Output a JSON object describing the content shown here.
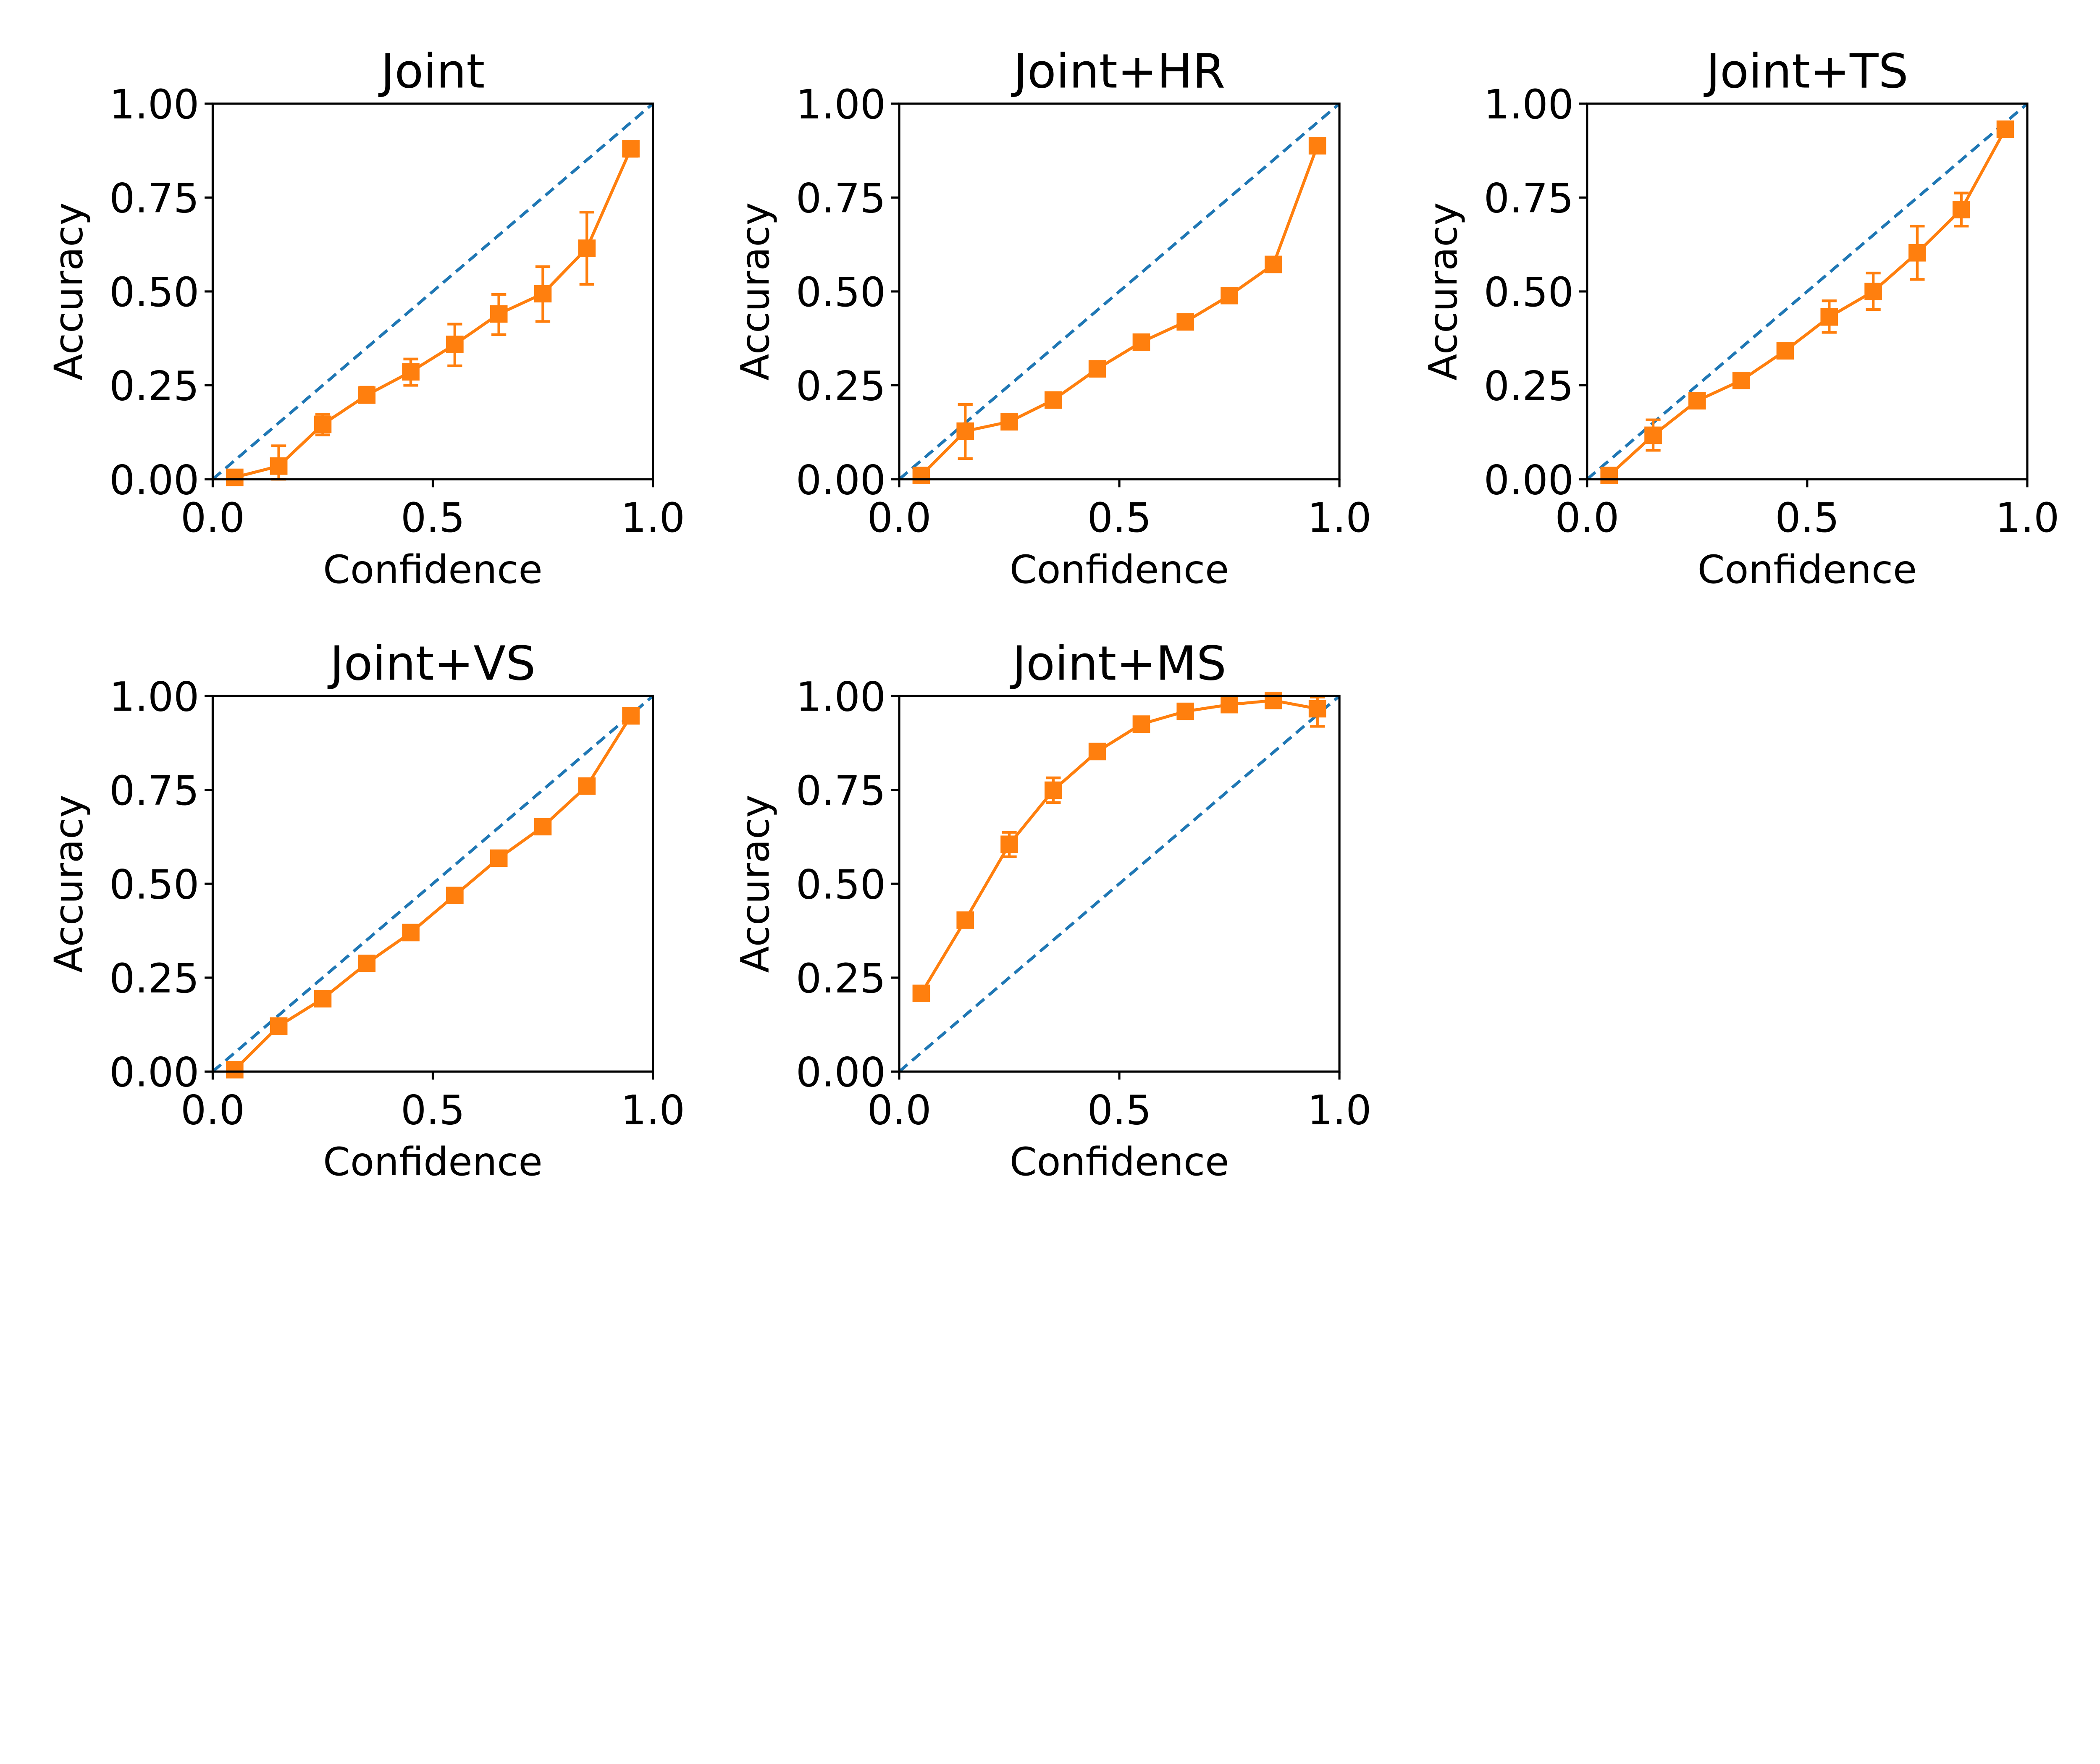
{
  "chart_data": [
    {
      "type": "line",
      "title": "Joint",
      "xlabel": "Confidence",
      "ylabel": "Accuracy",
      "xlim": [
        0,
        1
      ],
      "ylim": [
        0,
        1
      ],
      "xticks": [
        "0.0",
        "0.5",
        "1.0"
      ],
      "yticks": [
        "0.00",
        "0.25",
        "0.50",
        "0.75",
        "1.00"
      ],
      "grid": false,
      "reference_line": {
        "x": [
          0,
          1
        ],
        "y": [
          0,
          1
        ],
        "style": "dashed",
        "color": "#1f77b4"
      },
      "series": [
        {
          "color": "#ff7f0e",
          "marker": "square",
          "x": [
            0.05,
            0.15,
            0.25,
            0.35,
            0.45,
            0.55,
            0.65,
            0.75,
            0.85,
            0.95
          ],
          "y": [
            0.005,
            0.035,
            0.146,
            0.224,
            0.286,
            0.359,
            0.44,
            0.494,
            0.615,
            0.88
          ],
          "error": [
            null,
            [
              0.0,
              0.089
            ],
            [
              0.118,
              0.173
            ],
            [
              0.205,
              0.245
            ],
            [
              0.25,
              0.32
            ],
            [
              0.302,
              0.413
            ],
            [
              0.385,
              0.492
            ],
            [
              0.42,
              0.566
            ],
            [
              0.519,
              0.711
            ],
            [
              0.86,
              0.9
            ]
          ]
        }
      ]
    },
    {
      "type": "line",
      "title": "Joint+HR",
      "xlabel": "Confidence",
      "ylabel": "Accuracy",
      "xlim": [
        0,
        1
      ],
      "ylim": [
        0,
        1
      ],
      "xticks": [
        "0.0",
        "0.5",
        "1.0"
      ],
      "yticks": [
        "0.00",
        "0.25",
        "0.50",
        "0.75",
        "1.00"
      ],
      "grid": false,
      "reference_line": {
        "x": [
          0,
          1
        ],
        "y": [
          0,
          1
        ],
        "style": "dashed",
        "color": "#1f77b4"
      },
      "series": [
        {
          "color": "#ff7f0e",
          "marker": "square",
          "x": [
            0.05,
            0.15,
            0.25,
            0.35,
            0.45,
            0.55,
            0.65,
            0.75,
            0.85,
            0.95
          ],
          "y": [
            0.01,
            0.128,
            0.153,
            0.211,
            0.294,
            0.365,
            0.419,
            0.489,
            0.572,
            0.888
          ],
          "error": [
            null,
            [
              0.055,
              0.199
            ],
            null,
            null,
            null,
            null,
            null,
            [
              0.474,
              0.504
            ],
            null,
            null
          ]
        }
      ]
    },
    {
      "type": "line",
      "title": "Joint+TS",
      "xlabel": "Confidence",
      "ylabel": "Accuracy",
      "xlim": [
        0,
        1
      ],
      "ylim": [
        0,
        1
      ],
      "xticks": [
        "0.0",
        "0.5",
        "1.0"
      ],
      "yticks": [
        "0.00",
        "0.25",
        "0.50",
        "0.75",
        "1.00"
      ],
      "grid": false,
      "reference_line": {
        "x": [
          0,
          1
        ],
        "y": [
          0,
          1
        ],
        "style": "dashed",
        "color": "#1f77b4"
      },
      "series": [
        {
          "color": "#ff7f0e",
          "marker": "square",
          "x": [
            0.05,
            0.15,
            0.25,
            0.35,
            0.45,
            0.55,
            0.65,
            0.75,
            0.85,
            0.95
          ],
          "y": [
            0.01,
            0.117,
            0.209,
            0.263,
            0.342,
            0.432,
            0.5,
            0.603,
            0.718,
            0.932
          ],
          "error": [
            null,
            [
              0.077,
              0.158
            ],
            null,
            [
              0.248,
              0.278
            ],
            null,
            [
              0.391,
              0.475
            ],
            [
              0.452,
              0.549
            ],
            [
              0.532,
              0.674
            ],
            [
              0.674,
              0.762
            ],
            null
          ]
        }
      ]
    },
    {
      "type": "line",
      "title": "Joint+VS",
      "xlabel": "Confidence",
      "ylabel": "Accuracy",
      "xlim": [
        0,
        1
      ],
      "ylim": [
        0,
        1
      ],
      "xticks": [
        "0.0",
        "0.5",
        "1.0"
      ],
      "yticks": [
        "0.00",
        "0.25",
        "0.50",
        "0.75",
        "1.00"
      ],
      "grid": false,
      "reference_line": {
        "x": [
          0,
          1
        ],
        "y": [
          0,
          1
        ],
        "style": "dashed",
        "color": "#1f77b4"
      },
      "series": [
        {
          "color": "#ff7f0e",
          "marker": "square",
          "x": [
            0.05,
            0.15,
            0.25,
            0.35,
            0.45,
            0.55,
            0.65,
            0.75,
            0.85,
            0.95
          ],
          "y": [
            0.005,
            0.121,
            0.194,
            0.288,
            0.37,
            0.469,
            0.568,
            0.652,
            0.76,
            0.947
          ],
          "error": [
            null,
            null,
            null,
            null,
            null,
            null,
            null,
            null,
            null,
            null
          ]
        }
      ]
    },
    {
      "type": "line",
      "title": "Joint+MS",
      "xlabel": "Confidence",
      "ylabel": "Accuracy",
      "xlim": [
        0,
        1
      ],
      "ylim": [
        0,
        1
      ],
      "xticks": [
        "0.0",
        "0.5",
        "1.0"
      ],
      "yticks": [
        "0.00",
        "0.25",
        "0.50",
        "0.75",
        "1.00"
      ],
      "grid": false,
      "reference_line": {
        "x": [
          0,
          1
        ],
        "y": [
          0,
          1
        ],
        "style": "dashed",
        "color": "#1f77b4"
      },
      "series": [
        {
          "color": "#ff7f0e",
          "marker": "square",
          "x": [
            0.05,
            0.15,
            0.25,
            0.35,
            0.45,
            0.55,
            0.65,
            0.75,
            0.85,
            0.95
          ],
          "y": [
            0.208,
            0.403,
            0.605,
            0.749,
            0.852,
            0.925,
            0.959,
            0.977,
            0.988,
            0.966
          ],
          "error": [
            null,
            null,
            [
              0.572,
              0.637
            ],
            [
              0.716,
              0.782
            ],
            [
              0.835,
              0.868
            ],
            null,
            null,
            null,
            null,
            [
              0.919,
              0.997
            ]
          ]
        }
      ]
    }
  ]
}
